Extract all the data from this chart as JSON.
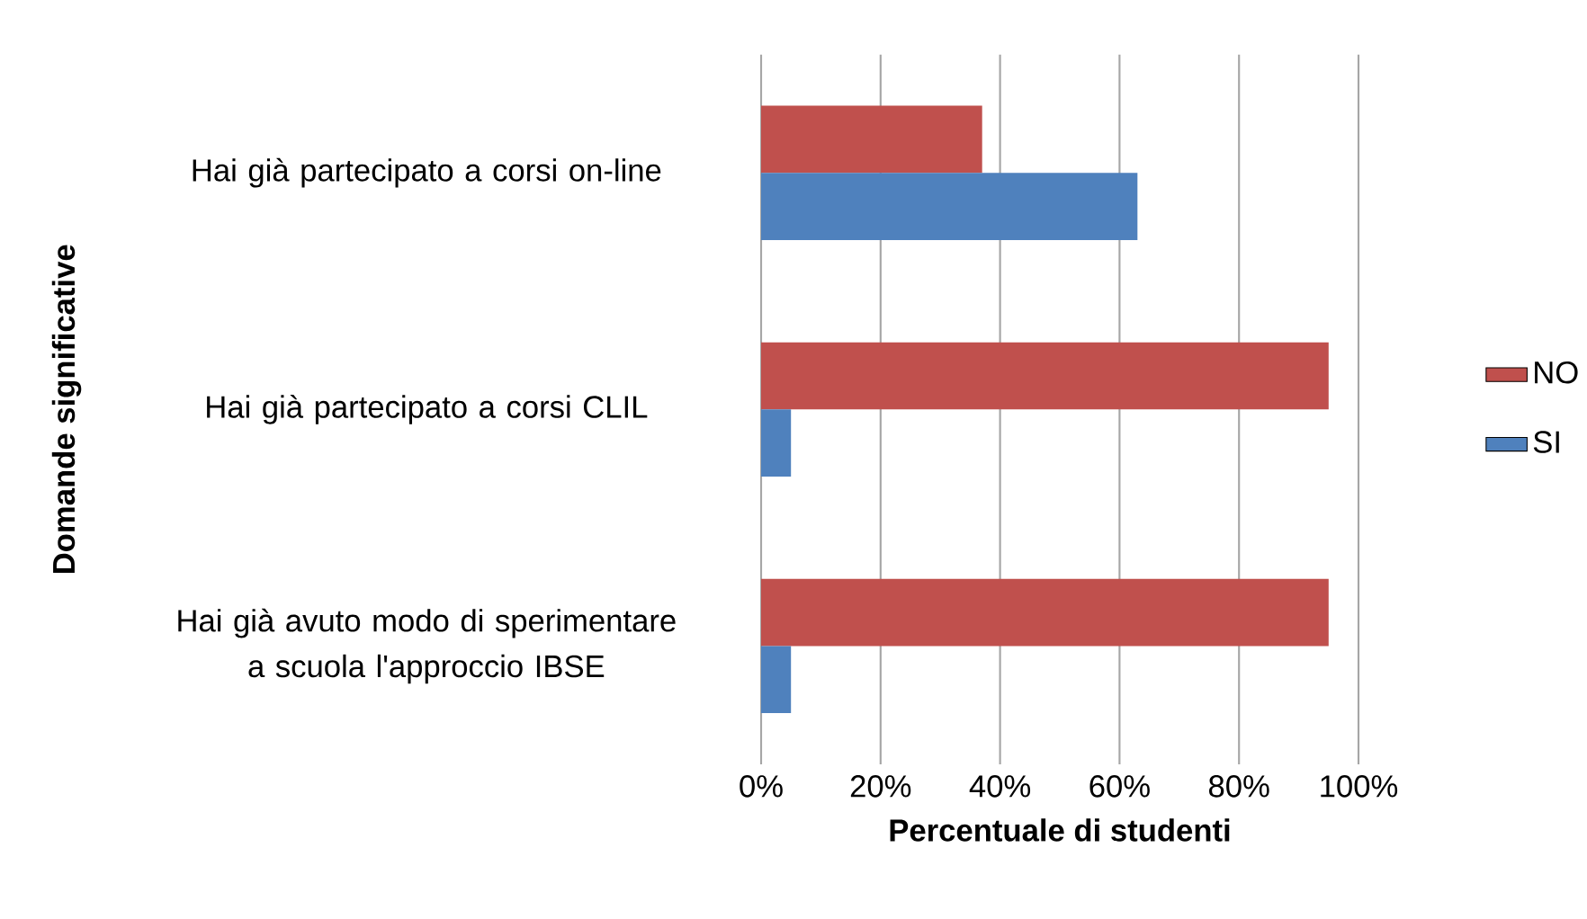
{
  "chart_data": {
    "type": "bar",
    "orientation": "horizontal",
    "xlabel": "Percentuale di studenti",
    "ylabel": "Domande significative",
    "categories": [
      "Hai già partecipato a corsi on-line",
      "Hai già partecipato a corsi CLIL",
      "Hai già avuto modo di sperimentare a scuola l'approccio IBSE"
    ],
    "series": [
      {
        "name": "NO",
        "color": "#c0504d",
        "values": [
          37,
          95,
          95
        ]
      },
      {
        "name": "SI",
        "color": "#4f81bd",
        "values": [
          63,
          5,
          5
        ]
      }
    ],
    "xlim": [
      0,
      100
    ],
    "xticks": [
      {
        "value": 0,
        "label": "0%"
      },
      {
        "value": 20,
        "label": "20%"
      },
      {
        "value": 40,
        "label": "40%"
      },
      {
        "value": 60,
        "label": "60%"
      },
      {
        "value": 80,
        "label": "80%"
      },
      {
        "value": 100,
        "label": "100%"
      }
    ],
    "grid": "x",
    "legend": "right"
  }
}
